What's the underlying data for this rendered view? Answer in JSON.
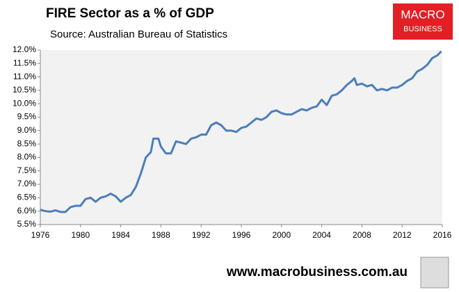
{
  "chart_data": {
    "type": "line",
    "title": "FIRE Sector as a % of GDP",
    "subtitle": "Source: Australian Bureau of Statistics",
    "x": [
      1976,
      1976.5,
      1977,
      1977.5,
      1978,
      1978.5,
      1979,
      1979.5,
      1980,
      1980.5,
      1981,
      1981.5,
      1982,
      1982.5,
      1983,
      1983.5,
      1984,
      1984.5,
      1985,
      1985.5,
      1986,
      1986.5,
      1987,
      1987.25,
      1987.75,
      1988,
      1988.5,
      1989,
      1989.5,
      1990,
      1990.5,
      1991,
      1991.5,
      1992,
      1992.5,
      1993,
      1993.5,
      1994,
      1994.5,
      1995,
      1995.5,
      1996,
      1996.5,
      1997,
      1997.5,
      1998,
      1998.5,
      1999,
      1999.5,
      2000,
      2000.5,
      2001,
      2001.5,
      2002,
      2002.5,
      2003,
      2003.5,
      2004,
      2004.5,
      2005,
      2005.5,
      2006,
      2006.5,
      2007,
      2007.25,
      2007.5,
      2008,
      2008.5,
      2009,
      2009.5,
      2010,
      2010.5,
      2011,
      2011.5,
      2012,
      2012.5,
      2013,
      2013.5,
      2014,
      2014.5,
      2015,
      2015.5,
      2015.9
    ],
    "series": [
      {
        "name": "FIRE Sector",
        "color": "#4a7ebb",
        "values": [
          6.05,
          6.0,
          5.98,
          6.03,
          5.97,
          5.97,
          6.15,
          6.2,
          6.2,
          6.45,
          6.5,
          6.35,
          6.5,
          6.55,
          6.65,
          6.55,
          6.35,
          6.5,
          6.6,
          6.9,
          7.4,
          8.0,
          8.2,
          8.7,
          8.7,
          8.4,
          8.15,
          8.15,
          8.6,
          8.55,
          8.5,
          8.7,
          8.75,
          8.85,
          8.85,
          9.2,
          9.3,
          9.2,
          9.0,
          9.0,
          8.95,
          9.1,
          9.15,
          9.3,
          9.45,
          9.4,
          9.5,
          9.7,
          9.75,
          9.65,
          9.6,
          9.6,
          9.7,
          9.8,
          9.75,
          9.85,
          9.9,
          10.15,
          9.95,
          10.3,
          10.35,
          10.5,
          10.7,
          10.85,
          10.95,
          10.7,
          10.75,
          10.65,
          10.7,
          10.5,
          10.55,
          10.5,
          10.6,
          10.6,
          10.7,
          10.85,
          10.95,
          11.2,
          11.3,
          11.45,
          11.7,
          11.8,
          11.95
        ]
      }
    ],
    "xlim": [
      1976,
      2016
    ],
    "xticks": [
      1976,
      1980,
      1984,
      1988,
      1992,
      1996,
      2000,
      2004,
      2008,
      2012,
      2016
    ],
    "ylim": [
      5.5,
      12.0
    ],
    "yticks": [
      {
        "value": 5.5,
        "label": "5.5%"
      },
      {
        "value": 6.0,
        "label": "6.0%"
      },
      {
        "value": 6.5,
        "label": "6.5%"
      },
      {
        "value": 7.0,
        "label": "7.0%"
      },
      {
        "value": 7.5,
        "label": "7.5%"
      },
      {
        "value": 8.0,
        "label": "8.0%"
      },
      {
        "value": 8.5,
        "label": "8.5%"
      },
      {
        "value": 9.0,
        "label": "9.0%"
      },
      {
        "value": 9.5,
        "label": "9.5%"
      },
      {
        "value": 10.0,
        "label": "10.0%"
      },
      {
        "value": 10.5,
        "label": "10.5%"
      },
      {
        "value": 11.0,
        "label": "11.0%"
      },
      {
        "value": 11.5,
        "label": "11.5%"
      },
      {
        "value": 12.0,
        "label": "12.0%"
      }
    ],
    "grid": false
  },
  "branding": {
    "logo_top": "MACRO",
    "logo_bottom": "BUSINESS",
    "website": "www.macrobusiness.com.au"
  }
}
